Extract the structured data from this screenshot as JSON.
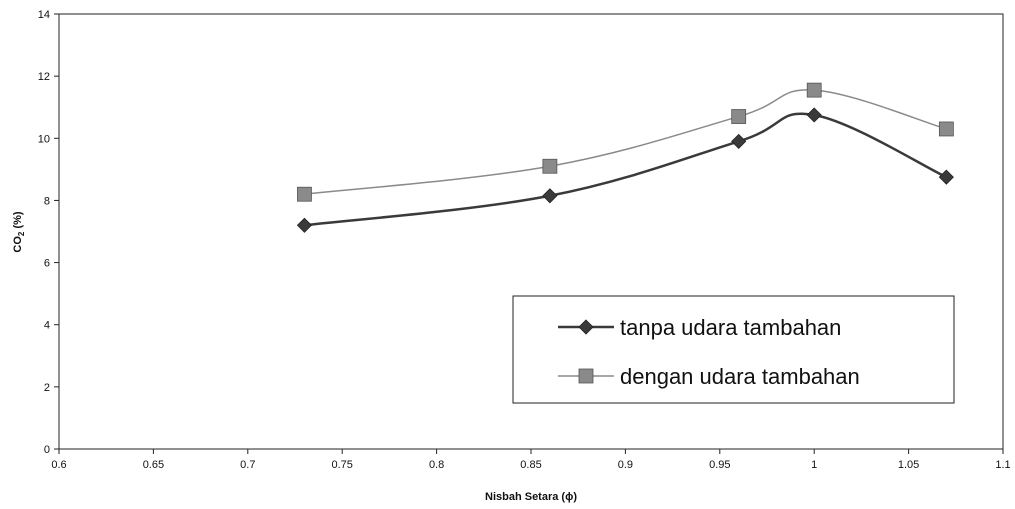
{
  "chart_data": {
    "type": "line",
    "title": "",
    "xlabel": "Nisbah Setara (ϕ)",
    "ylabel_main": "CO",
    "ylabel_sub": "2",
    "ylabel_rest": " (%)",
    "xlim": [
      0.6,
      1.1
    ],
    "ylim": [
      0,
      14
    ],
    "x_ticks": [
      0.6,
      0.65,
      0.7,
      0.75,
      0.8,
      0.85,
      0.9,
      0.95,
      1,
      1.05,
      1.1
    ],
    "x_tick_labels": [
      "0.6",
      "0.65",
      "0.7",
      "0.75",
      "0.8",
      "0.85",
      "0.9",
      "0.95",
      "1",
      "1.05",
      "1.1"
    ],
    "y_ticks": [
      0,
      2,
      4,
      6,
      8,
      10,
      12,
      14
    ],
    "y_tick_labels": [
      "0",
      "2",
      "4",
      "6",
      "8",
      "10",
      "12",
      "14"
    ],
    "grid": false,
    "legend_position": "bottom-right",
    "series": [
      {
        "name": "tanpa udara tambahan",
        "marker": "diamond",
        "color": "#3a3a3a",
        "x": [
          0.73,
          0.86,
          0.96,
          1.0,
          1.07
        ],
        "y": [
          7.2,
          8.15,
          9.9,
          10.75,
          8.75
        ]
      },
      {
        "name": "dengan udara tambahan",
        "marker": "square",
        "color": "#8a8a8a",
        "x": [
          0.73,
          0.86,
          0.96,
          1.0,
          1.07
        ],
        "y": [
          8.2,
          9.1,
          10.7,
          11.55,
          10.3
        ]
      }
    ]
  }
}
